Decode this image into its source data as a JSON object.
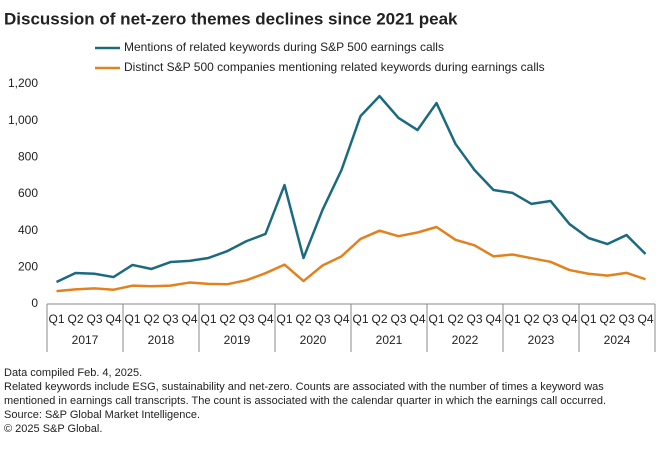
{
  "chart_data": {
    "type": "line",
    "title": "Discussion of net-zero themes declines since 2021 peak",
    "categories": [
      "Q1",
      "Q2",
      "Q3",
      "Q4",
      "Q1",
      "Q2",
      "Q3",
      "Q4",
      "Q1",
      "Q2",
      "Q3",
      "Q4",
      "Q1",
      "Q2",
      "Q3",
      "Q4",
      "Q1",
      "Q2",
      "Q3",
      "Q4",
      "Q1",
      "Q2",
      "Q3",
      "Q4",
      "Q1",
      "Q2",
      "Q3",
      "Q4",
      "Q1",
      "Q2",
      "Q3",
      "Q4"
    ],
    "years": [
      "2017",
      "2018",
      "2019",
      "2020",
      "2021",
      "2022",
      "2023",
      "2024"
    ],
    "series": [
      {
        "name": "Mentions of related keywords during S&P 500 earnings calls",
        "color": "#1b6a80",
        "values": [
          120,
          169,
          165,
          147,
          213,
          191,
          229,
          235,
          251,
          289,
          343,
          382,
          649,
          251,
          513,
          731,
          1025,
          1134,
          1015,
          949,
          1096,
          873,
          731,
          622,
          606,
          546,
          562,
          436,
          360,
          327,
          376,
          273
        ]
      },
      {
        "name": "Distinct S&P 500 companies mentioning related keywords during earnings calls",
        "color": "#e2821f",
        "values": [
          70,
          80,
          85,
          78,
          100,
          97,
          100,
          117,
          110,
          108,
          130,
          168,
          215,
          125,
          210,
          260,
          355,
          400,
          370,
          390,
          420,
          350,
          320,
          260,
          270,
          250,
          230,
          185,
          165,
          155,
          170,
          135
        ]
      }
    ],
    "ylim": [
      0,
      1200
    ],
    "yticks": [
      0,
      200,
      400,
      600,
      800,
      {
        "value": 1000,
        "label": "1,000"
      },
      {
        "value": 1200,
        "label": "1,200"
      }
    ],
    "grid": false,
    "notes": [
      "Data compiled Feb. 4, 2025.",
      "Related keywords include ESG, sustainability and net-zero. Counts are associated with the number of times a keyword was mentioned in earnings call transcripts. The count is associated with the calendar quarter in which the earnings call occurred.",
      "Source: S&P Global Market Intelligence.",
      "© 2025 S&P Global."
    ]
  }
}
